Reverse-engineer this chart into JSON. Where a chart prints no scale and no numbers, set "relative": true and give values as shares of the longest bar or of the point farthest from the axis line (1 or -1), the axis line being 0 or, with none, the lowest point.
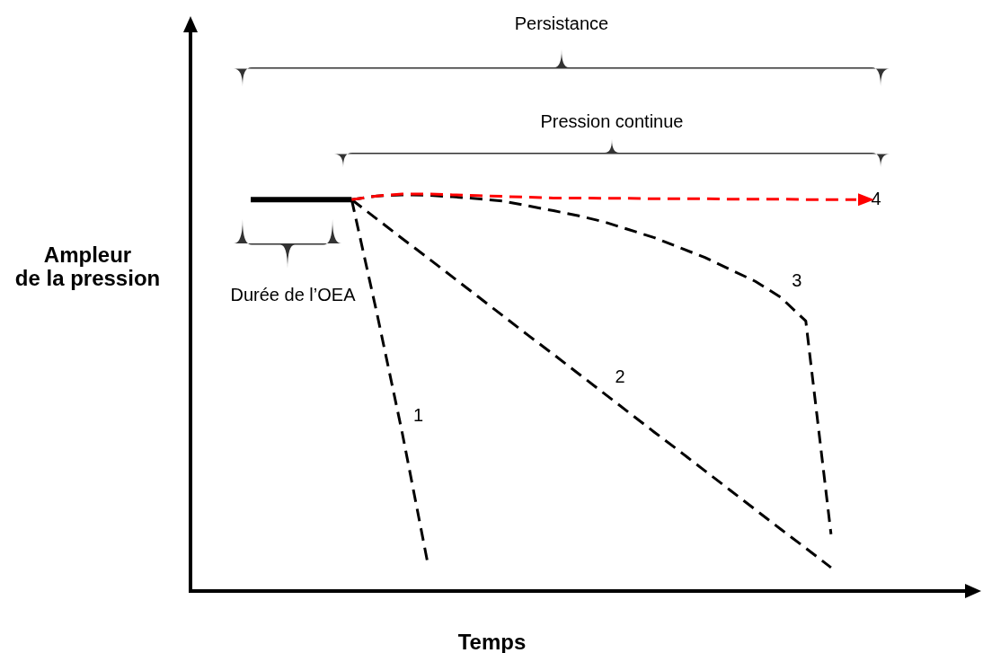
{
  "chart_data": {
    "type": "line",
    "relative": true,
    "xlabel": "Temps",
    "ylabel": "Ampleur\nde la pression",
    "grid": false,
    "marker": "none",
    "annotations": [
      "Persistance",
      "Pression continue",
      "Durée de l’OEA"
    ],
    "categories": [
      null,
      null,
      null,
      null,
      null,
      null,
      null,
      null,
      null,
      null,
      null,
      null,
      null,
      null,
      null,
      null,
      null,
      null,
      null,
      null,
      null,
      null,
      null,
      null,
      null
    ],
    "series": [
      {
        "color": "#000000",
        "line_style": "solid",
        "values": [
          0.986,
          0.986,
          0.986,
          0.986,
          0.986,
          null,
          null,
          null,
          null,
          null,
          null,
          null,
          null,
          null,
          null,
          null,
          null,
          null,
          null,
          null,
          null,
          null,
          null,
          null,
          null
        ]
      },
      {
        "name": "1",
        "color": "#000000",
        "line_style": "dashed",
        "values": [
          null,
          null,
          null,
          null,
          0.986,
          0.7,
          0.4,
          0.075,
          null,
          null,
          null,
          null,
          null,
          null,
          null,
          null,
          null,
          null,
          null,
          null,
          null,
          null,
          null,
          null,
          null
        ]
      },
      {
        "name": "2",
        "color": "#000000",
        "line_style": "dashed",
        "values": [
          null,
          null,
          null,
          null,
          0.986,
          0.937,
          0.888,
          0.84,
          0.791,
          0.742,
          0.693,
          0.644,
          0.596,
          0.547,
          0.498,
          0.449,
          0.4,
          0.352,
          0.303,
          0.254,
          0.205,
          0.156,
          0.108,
          0.059,
          null
        ]
      },
      {
        "name": "3",
        "color": "#000000",
        "line_style": "dashed",
        "values": [
          null,
          null,
          null,
          null,
          0.986,
          0.995,
          0.998,
          0.997,
          0.993,
          0.988,
          0.982,
          0.97,
          0.958,
          0.945,
          0.93,
          0.91,
          0.89,
          0.865,
          0.84,
          0.81,
          0.78,
          0.74,
          0.68,
          0.143,
          null
        ]
      },
      {
        "name": "4",
        "color": "#ff0000",
        "line_style": "dashed",
        "values": [
          null,
          null,
          null,
          null,
          0.986,
          0.995,
          1,
          1,
          0.998,
          0.996,
          0.994,
          0.992,
          0.99,
          0.99,
          0.989,
          0.989,
          0.988,
          0.988,
          0.988,
          0.987,
          0.987,
          0.987,
          0.986,
          0.986,
          0.986
        ]
      }
    ]
  }
}
